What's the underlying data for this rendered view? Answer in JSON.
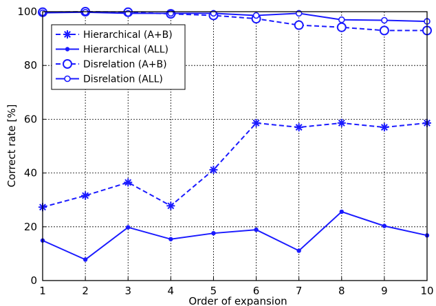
{
  "chart_data": {
    "type": "line",
    "xlabel": "Order of expansion",
    "ylabel": "Correct rate [%]",
    "x": [
      1,
      2,
      3,
      4,
      5,
      6,
      7,
      8,
      9,
      10
    ],
    "xlim": [
      1,
      10
    ],
    "ylim": [
      0,
      100
    ],
    "xticks": [
      1,
      2,
      3,
      4,
      5,
      6,
      7,
      8,
      9,
      10
    ],
    "yticks": [
      0,
      20,
      40,
      60,
      80,
      100
    ],
    "grid": true,
    "legend_position": "top-left",
    "color": "#1a1aff",
    "series": [
      {
        "name": "Hierarchical (A+B)",
        "marker": "asterisk",
        "line": "dashed",
        "values": [
          27.3,
          31.6,
          36.5,
          27.8,
          41.2,
          58.6,
          57.0,
          58.6,
          57.0,
          58.6
        ]
      },
      {
        "name": "Hierarchical (ALL)",
        "marker": "dot",
        "line": "solid",
        "values": [
          14.9,
          7.8,
          19.8,
          15.4,
          17.6,
          18.9,
          11.1,
          25.6,
          20.3,
          16.8
        ]
      },
      {
        "name": "Disrelation  (A+B)",
        "marker": "open-circle-large",
        "line": "dashed",
        "values": [
          99.8,
          100.0,
          99.8,
          99.2,
          98.6,
          97.4,
          95.0,
          94.2,
          93.0,
          93.0
        ]
      },
      {
        "name": "Disrelation  (ALL)",
        "marker": "open-circle-small",
        "line": "solid",
        "values": [
          99.6,
          99.8,
          99.4,
          99.4,
          99.4,
          98.6,
          99.4,
          97.0,
          96.8,
          96.4
        ]
      }
    ]
  }
}
